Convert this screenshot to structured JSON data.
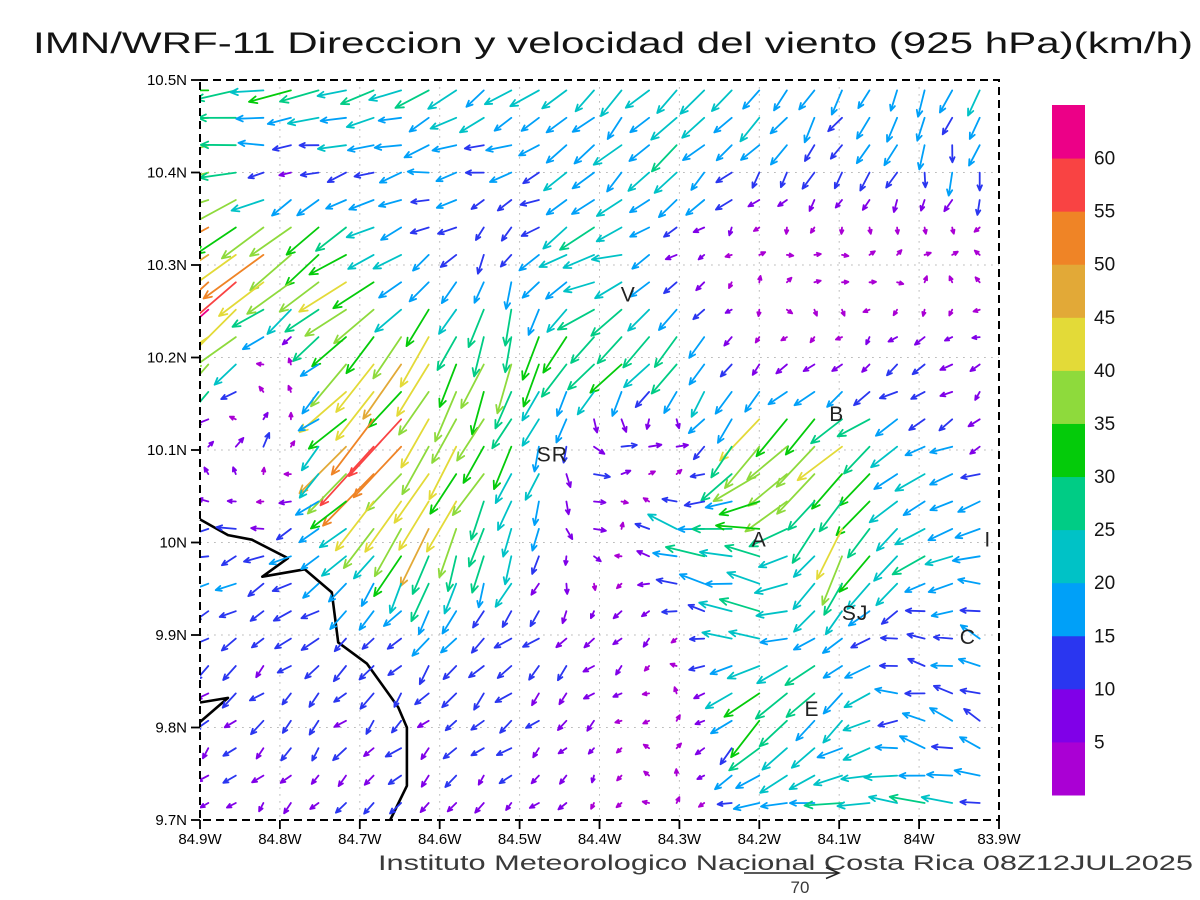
{
  "title": "IMN/WRF-11 Direccion y velocidad del viento (925 hPa)(km/h)",
  "footer": {
    "credit": "Instituto Meteorologico Nacional Costa Rica 08Z12JUL2025",
    "reference_vector_label": "70"
  },
  "chart_data": {
    "type": "vector-field",
    "title": "IMN/WRF-11 Direccion y velocidad del viento (925 hPa)(km/h)",
    "model": "IMN/WRF-11",
    "variable": "Direccion y velocidad del viento",
    "level": "925 hPa",
    "units": "km/h",
    "valid_time": "08Z12JUL2025",
    "source": "Instituto Meteorologico Nacional Costa Rica",
    "grid_on": true,
    "legend_position": "right",
    "reference_vector_kmh": 70,
    "x_tick_labels": [
      "84.9W",
      "84.8W",
      "84.7W",
      "84.6W",
      "84.5W",
      "84.4W",
      "84.3W",
      "84.2W",
      "84.1W",
      "84W",
      "83.9W"
    ],
    "y_tick_labels": [
      "10.5N",
      "10.4N",
      "10.3N",
      "10.2N",
      "10.1N",
      "10N",
      "9.9N",
      "9.8N",
      "9.7N"
    ],
    "lon_w_range": [
      84.9,
      83.9
    ],
    "lat_range": [
      9.7,
      10.5
    ],
    "colorbar": {
      "tick_labels": [
        "5",
        "10",
        "15",
        "20",
        "25",
        "30",
        "35",
        "40",
        "45",
        "50",
        "55",
        "60"
      ],
      "bin_edges_kmh": [
        5,
        10,
        15,
        20,
        25,
        30,
        35,
        40,
        45,
        50,
        55,
        60
      ],
      "colors": [
        "#aa00d4",
        "#8000e8",
        "#2a36f0",
        "#00a0f8",
        "#00c2c6",
        "#00cc85",
        "#04cb0a",
        "#8eda3c",
        "#e3da38",
        "#e2a937",
        "#ef8426",
        "#f94343",
        "#ec0087"
      ]
    },
    "stations": [
      {
        "label": "V",
        "lon_w": 84.364,
        "lat": 10.268
      },
      {
        "label": "B",
        "lon_w": 84.103,
        "lat": 10.139
      },
      {
        "label": "SR",
        "lon_w": 84.459,
        "lat": 10.095
      },
      {
        "label": "A",
        "lon_w": 84.2,
        "lat": 10.003
      },
      {
        "label": "SJ",
        "lon_w": 84.08,
        "lat": 9.924
      },
      {
        "label": "C",
        "lon_w": 83.939,
        "lat": 9.898
      },
      {
        "label": "E",
        "lon_w": 84.134,
        "lat": 9.82
      },
      {
        "label": "I",
        "lon_w": 83.914,
        "lat": 10.003
      }
    ],
    "coastlines": [
      [
        [
          84.9,
          10.025
        ],
        [
          84.865,
          10.008
        ],
        [
          84.835,
          10.003
        ],
        [
          84.79,
          9.983
        ],
        [
          84.822,
          9.963
        ],
        [
          84.769,
          9.971
        ],
        [
          84.735,
          9.946
        ],
        [
          84.727,
          9.892
        ],
        [
          84.691,
          9.869
        ],
        [
          84.672,
          9.846
        ],
        [
          84.652,
          9.822
        ],
        [
          84.641,
          9.8
        ],
        [
          84.641,
          9.737
        ],
        [
          84.662,
          9.7
        ]
      ],
      [
        [
          84.9,
          9.827
        ],
        [
          84.865,
          9.832
        ],
        [
          84.9,
          9.806
        ]
      ]
    ],
    "wind_grid": {
      "lon_w": [
        84.9,
        84.8,
        84.7,
        84.6,
        84.5,
        84.4,
        84.3,
        84.2,
        84.1,
        84.0,
        83.9
      ],
      "lat": [
        10.5,
        10.4,
        10.3,
        10.2,
        10.1,
        10.0,
        9.9,
        9.8,
        9.7
      ],
      "uv_kmh": [
        [
          [
            -32,
            -3
          ],
          [
            -30,
            -4
          ],
          [
            -26,
            -7
          ],
          [
            -20,
            -13
          ],
          [
            -17,
            -15
          ],
          [
            -16,
            -15
          ],
          [
            -15,
            -16
          ],
          [
            -12,
            -17
          ],
          [
            -10,
            -17
          ],
          [
            -7,
            -18
          ],
          [
            -5,
            -18
          ]
        ],
        [
          [
            -36,
            -7
          ],
          [
            -8,
            1
          ],
          [
            -16,
            -4
          ],
          [
            -13,
            -2
          ],
          [
            -14,
            -3
          ],
          [
            -16,
            -14
          ],
          [
            -16,
            -15
          ],
          [
            -9,
            -11
          ],
          [
            -7,
            -12
          ],
          [
            -4,
            -13
          ],
          [
            -3,
            -14
          ]
        ],
        [
          [
            -45,
            -35
          ],
          [
            -38,
            -30
          ],
          [
            -24,
            -18
          ],
          [
            -9,
            -9
          ],
          [
            -4,
            -14
          ],
          [
            -28,
            -8
          ],
          [
            -6,
            -5
          ],
          [
            4,
            4
          ],
          [
            5,
            1
          ],
          [
            3,
            3
          ],
          [
            -2,
            3
          ]
        ],
        [
          [
            -42,
            -38
          ],
          [
            5,
            8
          ],
          [
            -34,
            -32
          ],
          [
            -14,
            -38
          ],
          [
            -10,
            -30
          ],
          [
            -20,
            -24
          ],
          [
            -18,
            -20
          ],
          [
            -4,
            -5
          ],
          [
            -5,
            -3
          ],
          [
            -8,
            -8
          ],
          [
            -5,
            -4
          ]
        ],
        [
          [
            4,
            7
          ],
          [
            6,
            8
          ],
          [
            -35,
            -35
          ],
          [
            -26,
            -40
          ],
          [
            -14,
            -24
          ],
          [
            12,
            -2
          ],
          [
            9,
            1
          ],
          [
            -34,
            -34
          ],
          [
            -26,
            -24
          ],
          [
            -18,
            -8
          ],
          [
            -6,
            -4
          ]
        ],
        [
          [
            -16,
            -3
          ],
          [
            -13,
            -3
          ],
          [
            -18,
            -20
          ],
          [
            -14,
            -36
          ],
          [
            -6,
            -18
          ],
          [
            8,
            0
          ],
          [
            -24,
            8
          ],
          [
            -30,
            6
          ],
          [
            -12,
            -34
          ],
          [
            -22,
            -14
          ],
          [
            -15,
            -4
          ]
        ],
        [
          [
            -9,
            -8
          ],
          [
            -10,
            -8
          ],
          [
            -10,
            -9
          ],
          [
            -8,
            -12
          ],
          [
            -9,
            -8
          ],
          [
            -8,
            -7
          ],
          [
            -4,
            -3
          ],
          [
            -26,
            4
          ],
          [
            -14,
            -14
          ],
          [
            -12,
            0
          ],
          [
            -14,
            8
          ]
        ],
        [
          [
            -8,
            -8
          ],
          [
            -8,
            -8
          ],
          [
            -8,
            -8
          ],
          [
            -8,
            -8
          ],
          [
            -8,
            -7
          ],
          [
            -5,
            -5
          ],
          [
            1,
            4
          ],
          [
            -22,
            -24
          ],
          [
            -16,
            -14
          ],
          [
            -18,
            6
          ],
          [
            -12,
            6
          ]
        ],
        [
          [
            -5,
            -4
          ],
          [
            -5,
            -5
          ],
          [
            -7,
            -6
          ],
          [
            -7,
            -6
          ],
          [
            -5,
            -5
          ],
          [
            -3,
            -4
          ],
          [
            1,
            2
          ],
          [
            -18,
            -2
          ],
          [
            -24,
            0
          ],
          [
            -26,
            2
          ],
          [
            -14,
            -2
          ]
        ]
      ]
    }
  }
}
